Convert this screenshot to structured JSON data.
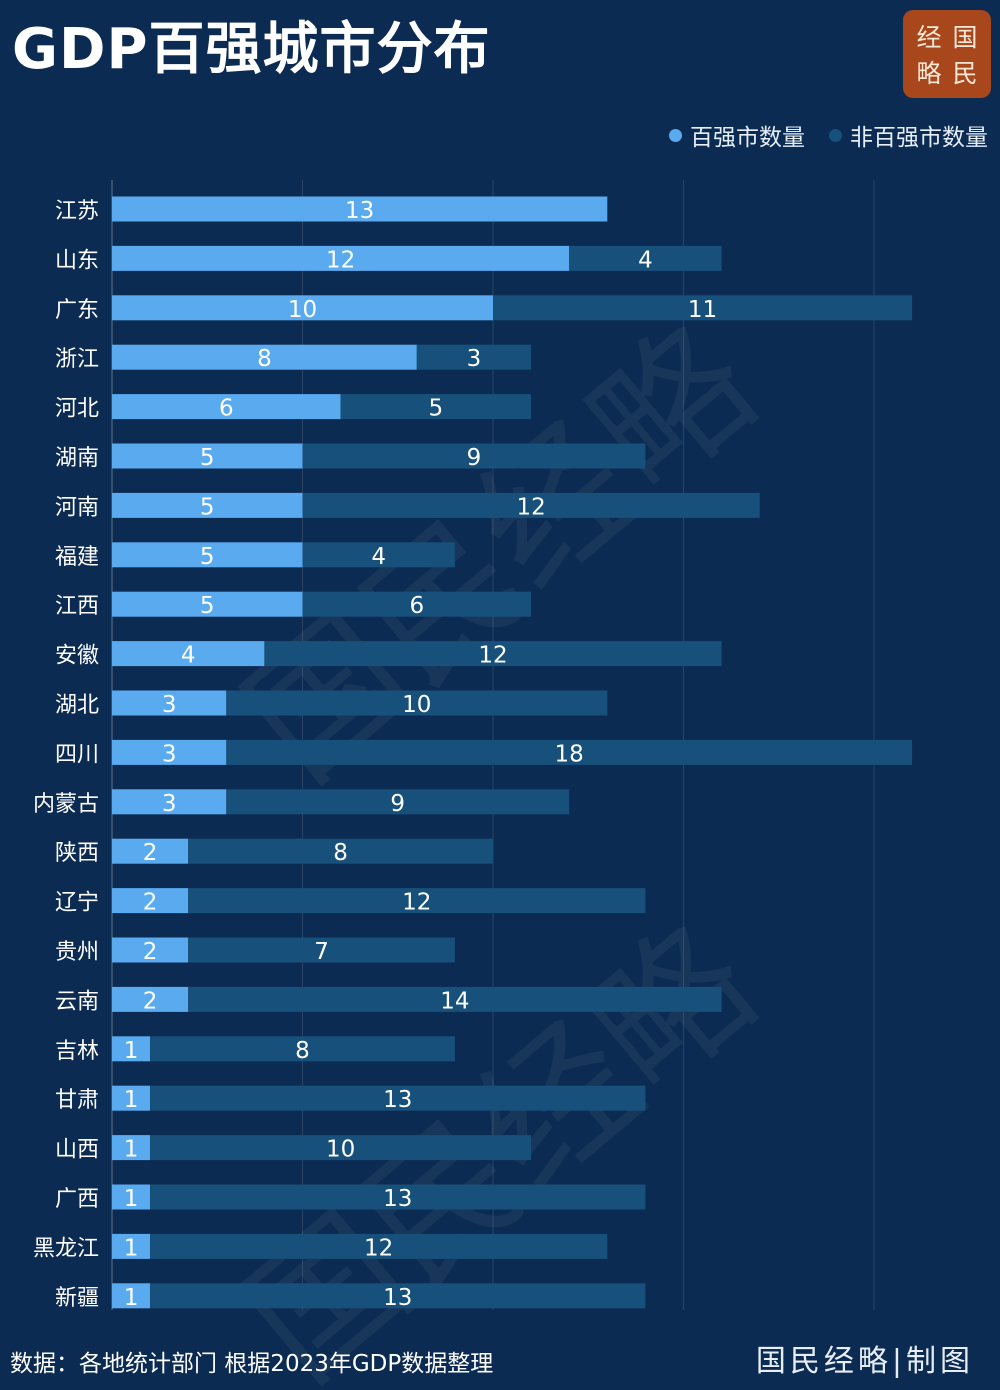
{
  "title": "GDP百强城市分布",
  "logo": {
    "chars": [
      "经",
      "国",
      "略",
      "民"
    ]
  },
  "footer": {
    "source": "数据：各地统计部门 根据2023年GDP数据整理",
    "credit": "国民经略|制图"
  },
  "colors": {
    "background": "#0c2b52",
    "top100": "#5aaaf0",
    "non_top100": "#17507a",
    "logo": "#a8461c"
  },
  "chart_data": {
    "type": "bar",
    "orientation": "horizontal",
    "stacked": true,
    "categories": [
      "江苏",
      "山东",
      "广东",
      "浙江",
      "河北",
      "湖南",
      "河南",
      "福建",
      "江西",
      "安徽",
      "湖北",
      "四川",
      "内蒙古",
      "陕西",
      "辽宁",
      "贵州",
      "云南",
      "吉林",
      "甘肃",
      "山西",
      "广西",
      "黑龙江",
      "新疆"
    ],
    "series": [
      {
        "name": "百强市数量",
        "values": [
          13,
          12,
          10,
          8,
          6,
          5,
          5,
          5,
          5,
          4,
          3,
          3,
          3,
          2,
          2,
          2,
          2,
          1,
          1,
          1,
          1,
          1,
          1
        ]
      },
      {
        "name": "非百强市数量",
        "values": [
          0,
          4,
          11,
          3,
          5,
          9,
          12,
          4,
          6,
          12,
          10,
          18,
          9,
          8,
          12,
          7,
          14,
          8,
          13,
          10,
          13,
          12,
          13
        ]
      }
    ],
    "title": "GDP百强城市分布",
    "legend": "top-right",
    "grid": true,
    "xlim": [
      0,
      24
    ]
  }
}
